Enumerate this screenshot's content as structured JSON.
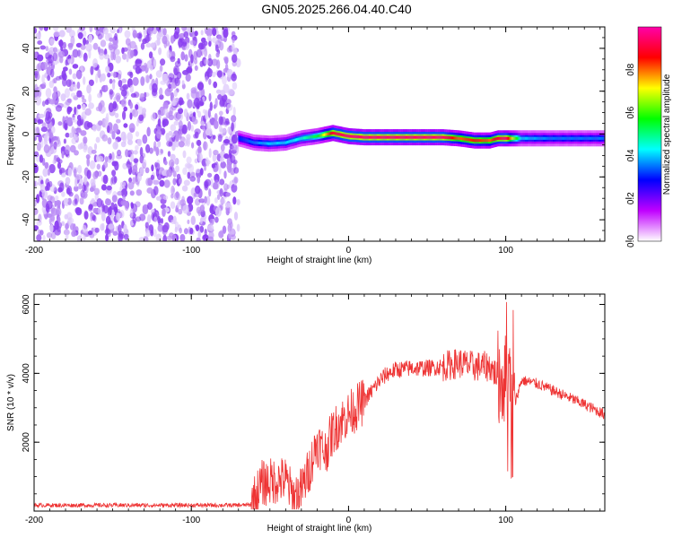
{
  "page_title": "GN05.2025.266.04.40.C40",
  "chart_data": [
    {
      "type": "heatmap",
      "name": "spectrogram",
      "xlabel": "Height of straight line (km)",
      "ylabel": "Frequency (Hz)",
      "xlim": [
        -200,
        163
      ],
      "ylim": [
        -50,
        50
      ],
      "x_ticks": [
        -200,
        -100,
        0,
        100
      ],
      "y_ticks": [
        -40,
        -20,
        0,
        20,
        40
      ],
      "noise_region_x": [
        -200,
        -70
      ],
      "signal_track": {
        "x": [
          -70,
          -60,
          -50,
          -40,
          -30,
          -20,
          -10,
          0,
          10,
          20,
          40,
          60,
          70,
          80,
          90,
          95,
          100,
          110,
          130,
          163
        ],
        "freq_hz": [
          -2,
          -4,
          -4.5,
          -4,
          -2,
          -1,
          0.5,
          -1,
          -1.5,
          -1.5,
          -1.5,
          -1.5,
          -2,
          -3,
          -3,
          -2,
          -2,
          -2,
          -2,
          -2
        ],
        "amplitude": [
          0.3,
          0.35,
          0.4,
          0.4,
          0.45,
          0.55,
          0.9,
          0.95,
          0.95,
          0.95,
          0.95,
          0.95,
          0.8,
          0.85,
          0.8,
          0.9,
          0.95,
          0.4,
          0.35,
          0.35
        ]
      },
      "colorbar": {
        "label": "Normalized spectral amplitude",
        "range": [
          0.0,
          1.0
        ],
        "ticks": [
          0.0,
          0.2,
          0.4,
          0.6,
          0.8
        ],
        "tick_labels": [
          "0.0",
          "0.2",
          "0.4",
          "0.6",
          "0.8"
        ],
        "colors": [
          "#ffffff",
          "#c000ff",
          "#0000ff",
          "#00ffff",
          "#00ff00",
          "#ffff00",
          "#ff0000",
          "#ff00aa"
        ]
      }
    },
    {
      "type": "line",
      "name": "snr",
      "xlabel": "Height of straight line (km)",
      "ylabel": "SNR (10 * v/v)",
      "xlim": [
        -200,
        163
      ],
      "ylim": [
        0,
        6300
      ],
      "x_ticks": [
        -200,
        -100,
        0,
        100
      ],
      "y_ticks": [
        2000,
        4000,
        6000
      ],
      "color": "#ee3333",
      "series": [
        {
          "name": "SNR",
          "x": [
            -200,
            -70,
            -62,
            -55,
            -45,
            -40,
            -35,
            -30,
            -25,
            -20,
            -15,
            -10,
            -5,
            0,
            5,
            10,
            15,
            20,
            25,
            30,
            40,
            50,
            60,
            70,
            80,
            90,
            95,
            100,
            103,
            105,
            110,
            120,
            130,
            140,
            150,
            163
          ],
          "y": [
            170,
            170,
            180,
            800,
            900,
            900,
            400,
            600,
            1200,
            2000,
            1700,
            2300,
            2600,
            2800,
            3000,
            3200,
            3500,
            3800,
            4000,
            4100,
            4150,
            4150,
            4200,
            4300,
            4200,
            4200,
            3900,
            3800,
            3500,
            3000,
            3800,
            3700,
            3500,
            3300,
            3100,
            2800
          ]
        }
      ]
    }
  ]
}
